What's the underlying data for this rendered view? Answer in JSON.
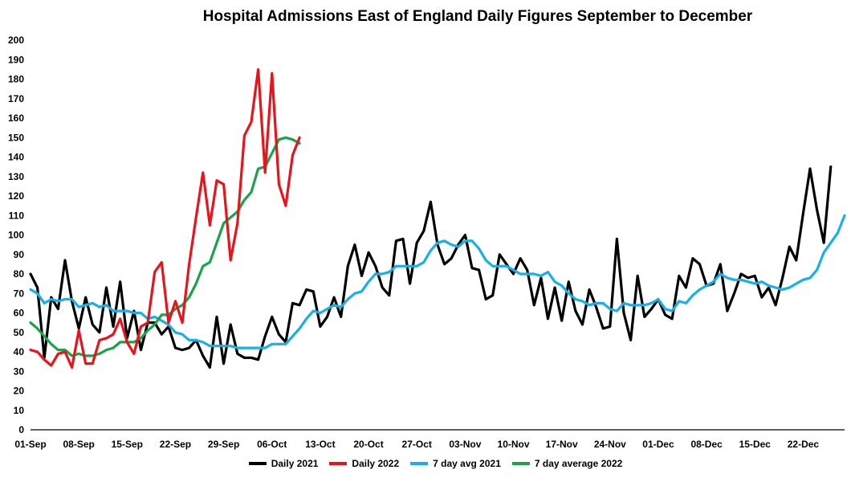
{
  "chart_data": {
    "type": "line",
    "title": "Hospital Admissions East of England Daily Figures September to December",
    "xlabel": "",
    "ylabel": "",
    "ylim": [
      0,
      200
    ],
    "ytick_step": 10,
    "x_ticks": [
      "01-Sep",
      "08-Sep",
      "15-Sep",
      "22-Sep",
      "29-Sep",
      "06-Oct",
      "13-Oct",
      "20-Oct",
      "27-Oct",
      "03-Nov",
      "10-Nov",
      "17-Nov",
      "24-Nov",
      "01-Dec",
      "08-Dec",
      "15-Dec",
      "22-Dec"
    ],
    "x_range_days": [
      0,
      118
    ],
    "series": [
      {
        "name": "Daily 2021",
        "color": "#000000",
        "values": [
          80,
          73,
          37,
          68,
          62,
          87,
          66,
          52,
          68,
          54,
          50,
          73,
          53,
          76,
          47,
          61,
          41,
          55,
          55,
          49,
          53,
          42,
          41,
          42,
          46,
          38,
          32,
          58,
          34,
          54,
          39,
          37,
          37,
          36,
          48,
          58,
          49,
          45,
          65,
          64,
          72,
          71,
          53,
          58,
          68,
          58,
          84,
          95,
          79,
          91,
          84,
          73,
          69,
          97,
          98,
          75,
          96,
          102,
          117,
          95,
          85,
          88,
          95,
          100,
          83,
          82,
          67,
          69,
          90,
          85,
          80,
          88,
          82,
          64,
          78,
          57,
          73,
          56,
          76,
          61,
          54,
          72,
          63,
          52,
          53,
          98,
          60,
          46,
          79,
          58,
          62,
          67,
          59,
          57,
          79,
          73,
          88,
          85,
          74,
          75,
          85,
          61,
          70,
          80,
          78,
          79,
          68,
          73,
          64,
          78,
          94,
          87,
          111,
          134,
          113,
          96,
          135
        ]
      },
      {
        "name": "Daily 2022",
        "color": "#e8141b",
        "values": [
          41,
          40,
          36,
          33,
          39,
          40,
          32,
          51,
          34,
          34,
          46,
          47,
          49,
          57,
          45,
          39,
          53,
          55,
          81,
          86,
          55,
          66,
          55,
          85,
          109,
          132,
          105,
          128,
          126,
          87,
          106,
          151,
          158,
          185,
          132,
          183,
          126,
          115,
          141,
          150
        ]
      },
      {
        "name": "7 day avg 2021",
        "color": "#1aafe6",
        "values": [
          72,
          70,
          65,
          67,
          66,
          67,
          67,
          63,
          64,
          65,
          63,
          64,
          61,
          61,
          61,
          60,
          60,
          57,
          58,
          56,
          54,
          50,
          49,
          46,
          46,
          45,
          43,
          43,
          43,
          43,
          42,
          42,
          42,
          42,
          42,
          44,
          44,
          44,
          48,
          52,
          57,
          61,
          60,
          62,
          64,
          63,
          67,
          70,
          71,
          76,
          80,
          80,
          81,
          84,
          84,
          84,
          84,
          86,
          92,
          96,
          97,
          95,
          94,
          97,
          97,
          93,
          87,
          84,
          84,
          84,
          82,
          80,
          80,
          80,
          79,
          81,
          76,
          74,
          70,
          67,
          66,
          64,
          65,
          65,
          62,
          61,
          65,
          64,
          64,
          64,
          65,
          67,
          62,
          61,
          66,
          65,
          69,
          72,
          74,
          76,
          80,
          78,
          77,
          77,
          76,
          75,
          76,
          74,
          73,
          72,
          73,
          75,
          77,
          78,
          82,
          91,
          96,
          101,
          110
        ]
      },
      {
        "name": "7 day average 2022",
        "color": "#1aa34a",
        "values": [
          55,
          52,
          48,
          44,
          41,
          41,
          38,
          39,
          38,
          38,
          39,
          41,
          42,
          45,
          45,
          45,
          47,
          51,
          54,
          59,
          59,
          62,
          64,
          68,
          75,
          84,
          86,
          96,
          106,
          109,
          112,
          118,
          122,
          134,
          135,
          142,
          149,
          150,
          149,
          147
        ]
      }
    ],
    "legend": [
      "Daily 2021",
      "Daily 2022",
      "7 day avg 2021",
      "7 day average 2022"
    ],
    "legend_position": "bottom",
    "grid": false
  }
}
